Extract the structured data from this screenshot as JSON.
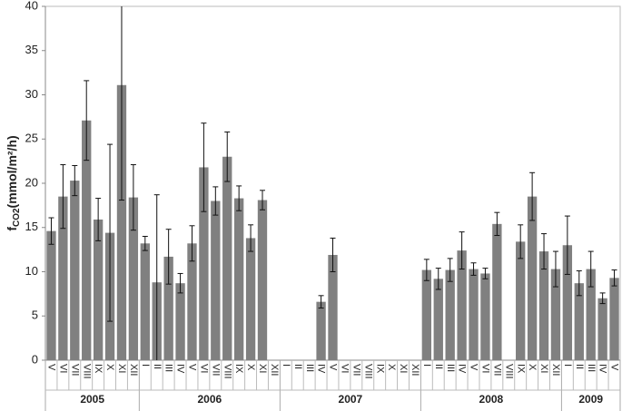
{
  "chart_data": {
    "type": "bar",
    "color": "#808080",
    "y_label": {
      "main": "f",
      "sub": "CO2",
      "unit": "(mmol/m²/h)"
    },
    "ylim": [
      0,
      40
    ],
    "yticks": [
      0,
      5,
      10,
      15,
      20,
      25,
      30,
      35,
      40
    ],
    "groups": [
      {
        "label": "2005",
        "categories": [
          "V",
          "VI",
          "VII",
          "VIII",
          "IX",
          "X",
          "XI",
          "XII"
        ],
        "values": [
          14.6,
          18.5,
          20.3,
          27.1,
          15.9,
          14.4,
          31.1,
          18.4
        ],
        "errors": [
          1.5,
          3.6,
          1.7,
          4.5,
          2.4,
          10,
          13,
          3.7
        ]
      },
      {
        "label": "2006",
        "categories": [
          "I",
          "II",
          "III",
          "IV",
          "V",
          "VI",
          "VII",
          "VIII",
          "IX",
          "X",
          "XI",
          "XII"
        ],
        "values": [
          13.2,
          8.8,
          11.7,
          8.7,
          13.2,
          21.8,
          18.0,
          23.0,
          18.3,
          13.8,
          18.1,
          null
        ],
        "errors": [
          0.8,
          9.9,
          3.1,
          1.1,
          2.0,
          5.0,
          1.6,
          2.8,
          1.4,
          1.5,
          1.1,
          null
        ]
      },
      {
        "label": "2007",
        "categories": [
          "I",
          "II",
          "III",
          "IV",
          "V",
          "VI",
          "VII",
          "VIII",
          "IX",
          "X",
          "XI",
          "XII"
        ],
        "values": [
          null,
          null,
          null,
          6.6,
          11.9,
          null,
          null,
          null,
          null,
          null,
          null,
          null
        ],
        "errors": [
          null,
          null,
          null,
          0.7,
          1.9,
          null,
          null,
          null,
          null,
          null,
          null,
          null
        ]
      },
      {
        "label": "2008",
        "categories": [
          "I",
          "II",
          "III",
          "IV",
          "V",
          "VI",
          "VII",
          "VIII",
          "IX",
          "X",
          "XI",
          "XII"
        ],
        "values": [
          10.2,
          9.2,
          10.2,
          12.4,
          10.3,
          9.8,
          15.4,
          null,
          13.4,
          18.5,
          12.3,
          10.3
        ],
        "errors": [
          1.2,
          1.2,
          1.3,
          2.1,
          0.7,
          0.6,
          1.3,
          null,
          1.9,
          2.7,
          2.0,
          2.0
        ]
      },
      {
        "label": "2009",
        "categories": [
          "I",
          "II",
          "III",
          "IV",
          "V"
        ],
        "values": [
          13.0,
          8.7,
          10.3,
          7.0,
          9.3
        ],
        "errors": [
          3.3,
          1.4,
          2.0,
          0.6,
          0.9
        ]
      }
    ]
  }
}
